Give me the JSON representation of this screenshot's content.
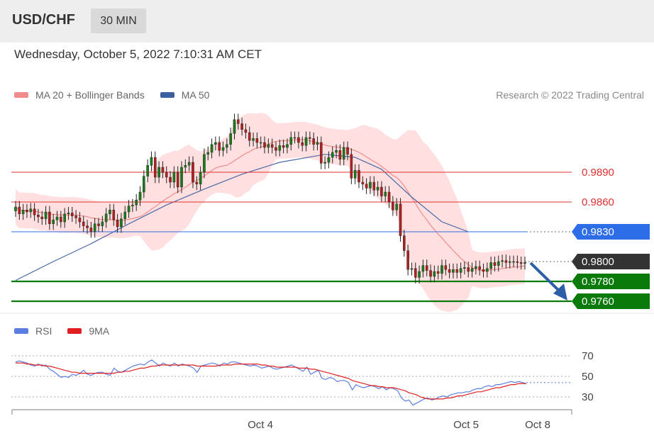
{
  "header": {
    "pair": "USD/CHF",
    "timeframe": "30 MIN"
  },
  "datetime": "Wednesday, October 5, 2022 7:10:31 AM CET",
  "legend": {
    "ma20": {
      "label": "MA 20 + Bollinger Bands",
      "color": "#f28b8b"
    },
    "ma50": {
      "label": "MA 50",
      "color": "#3b5fa0"
    }
  },
  "copyright": "Research © 2022 Trading Central",
  "rsi_legend": {
    "rsi": {
      "label": "RSI",
      "color": "#5b7fe0"
    },
    "ma9": {
      "label": "9MA",
      "color": "#e02020"
    }
  },
  "chart_data": [
    {
      "type": "candlestick",
      "pair": "USD/CHF",
      "timeframe": "30 MIN",
      "ylim": [
        0.975,
        0.9905
      ],
      "current_price": "0.9800",
      "levels": [
        {
          "value": 0.989,
          "label": "0.9890",
          "kind": "resistance",
          "color": "#e03030"
        },
        {
          "value": 0.986,
          "label": "0.9860",
          "kind": "resistance",
          "color": "#e03030"
        },
        {
          "value": 0.983,
          "label": "0.9830",
          "kind": "pivot",
          "color": "#2d6ee8"
        },
        {
          "value": 0.98,
          "label": "0.9800",
          "kind": "last",
          "color": "#333333"
        },
        {
          "value": 0.978,
          "label": "0.9780",
          "kind": "support",
          "color": "#0a7a0a"
        },
        {
          "value": 0.976,
          "label": "0.9760",
          "kind": "support",
          "color": "#0a7a0a"
        }
      ],
      "close": [
        0.9855,
        0.9848,
        0.9852,
        0.985,
        0.9853,
        0.9847,
        0.9845,
        0.9843,
        0.985,
        0.9838,
        0.9842,
        0.9845,
        0.984,
        0.9848,
        0.9849,
        0.9846,
        0.9844,
        0.984,
        0.9836,
        0.9834,
        0.983,
        0.9838,
        0.9836,
        0.984,
        0.9848,
        0.9852,
        0.9842,
        0.9835,
        0.9843,
        0.985,
        0.9856,
        0.9857,
        0.9862,
        0.987,
        0.9886,
        0.9897,
        0.9905,
        0.9885,
        0.9895,
        0.989,
        0.9885,
        0.988,
        0.989,
        0.9875,
        0.9895,
        0.9897,
        0.99,
        0.988,
        0.9878,
        0.989,
        0.9908,
        0.991,
        0.9918,
        0.992,
        0.9912,
        0.9915,
        0.9918,
        0.9929,
        0.9943,
        0.9939,
        0.9933,
        0.993,
        0.9922,
        0.9924,
        0.992,
        0.992,
        0.9915,
        0.9918,
        0.9915,
        0.9912,
        0.9917,
        0.9915,
        0.9918,
        0.9925,
        0.9925,
        0.992,
        0.9917,
        0.9925,
        0.9924,
        0.9918,
        0.992,
        0.9899,
        0.99,
        0.9905,
        0.991,
        0.9912,
        0.9903,
        0.9915,
        0.9908,
        0.9884,
        0.9892,
        0.988,
        0.9878,
        0.9874,
        0.988,
        0.9872,
        0.9875,
        0.9866,
        0.987,
        0.986,
        0.9852,
        0.9858,
        0.9826,
        0.9811,
        0.9792,
        0.9793,
        0.9784,
        0.979,
        0.9796,
        0.9791,
        0.9785,
        0.979,
        0.9788,
        0.9796,
        0.9792,
        0.9789,
        0.9792,
        0.9789,
        0.9793,
        0.9794,
        0.979,
        0.9793,
        0.9795,
        0.9792,
        0.979,
        0.9793,
        0.9799,
        0.9796,
        0.98,
        0.9801,
        0.9799,
        0.98,
        0.98,
        0.9799,
        0.9798,
        0.9799
      ],
      "ma50": {
        "start": 0.978,
        "waypoints": [
          [
            0,
            0.9781
          ],
          [
            10,
            0.98
          ],
          [
            20,
            0.9818
          ],
          [
            30,
            0.9838
          ],
          [
            40,
            0.9857
          ],
          [
            50,
            0.9873
          ],
          [
            60,
            0.9888
          ],
          [
            70,
            0.99
          ],
          [
            82,
            0.9908
          ],
          [
            90,
            0.9905
          ],
          [
            97,
            0.9893
          ],
          [
            105,
            0.9865
          ],
          [
            113,
            0.984
          ],
          [
            120,
            0.983
          ]
        ]
      }
    },
    {
      "type": "line",
      "title": "RSI",
      "ylim": [
        20,
        80
      ],
      "gridlines": [
        70,
        50,
        30
      ],
      "gridlabels": [
        "70",
        "50",
        "30"
      ],
      "series": [
        {
          "name": "RSI",
          "values": [
            64,
            65,
            64,
            63,
            61,
            60,
            62,
            60,
            61,
            57,
            55,
            52,
            49,
            50,
            49,
            52,
            51,
            53,
            56,
            52,
            51,
            53,
            54,
            54,
            52,
            51,
            58,
            55,
            54,
            56,
            58,
            60,
            61,
            62,
            61,
            64,
            66,
            63,
            60,
            63,
            61,
            60,
            63,
            60,
            62,
            61,
            60,
            58,
            54,
            60,
            61,
            62,
            63,
            62,
            60,
            63,
            62,
            64,
            64,
            63,
            62,
            61,
            60,
            61,
            60,
            58,
            59,
            60,
            58,
            57,
            58,
            59,
            60,
            61,
            59,
            57,
            55,
            59,
            52,
            54,
            56,
            48,
            47,
            49,
            48,
            45,
            46,
            46,
            44,
            37,
            42,
            40,
            39,
            40,
            41,
            40,
            38,
            40,
            37,
            39,
            38,
            36,
            29,
            26,
            27,
            22,
            24,
            26,
            28,
            29,
            27,
            28,
            30,
            31,
            30,
            32,
            33,
            34,
            34,
            35,
            35,
            37,
            38,
            38,
            40,
            41,
            40,
            42,
            42,
            43,
            44,
            45,
            44,
            45,
            44,
            43
          ]
        },
        {
          "name": "9MA",
          "values": [
            63,
            63,
            63,
            62,
            62,
            61,
            61,
            61,
            60,
            60,
            59,
            58,
            57,
            56,
            55,
            54,
            54,
            53,
            53,
            53,
            53,
            53,
            53,
            53,
            53,
            53,
            53,
            54,
            54,
            55,
            55,
            56,
            57,
            58,
            58,
            59,
            60,
            60,
            61,
            61,
            61,
            61,
            61,
            61,
            61,
            61,
            61,
            61,
            60,
            60,
            60,
            60,
            60,
            60,
            61,
            61,
            61,
            61,
            62,
            62,
            62,
            62,
            62,
            62,
            62,
            61,
            61,
            60,
            60,
            59,
            59,
            59,
            59,
            59,
            59,
            58,
            58,
            58,
            57,
            57,
            56,
            55,
            54,
            53,
            52,
            51,
            50,
            49,
            48,
            46,
            45,
            44,
            43,
            42,
            41,
            41,
            40,
            40,
            39,
            39,
            39,
            38,
            37,
            36,
            34,
            33,
            32,
            30,
            29,
            28,
            28,
            28,
            28,
            28,
            29,
            29,
            30,
            31,
            31,
            32,
            33,
            34,
            35,
            35,
            36,
            37,
            38,
            39,
            39,
            40,
            41,
            42,
            42,
            43,
            43,
            43
          ]
        }
      ]
    },
    {
      "type": "axis",
      "xticks": [
        "Oct 4",
        "Oct 5",
        "Oct 8"
      ]
    }
  ]
}
